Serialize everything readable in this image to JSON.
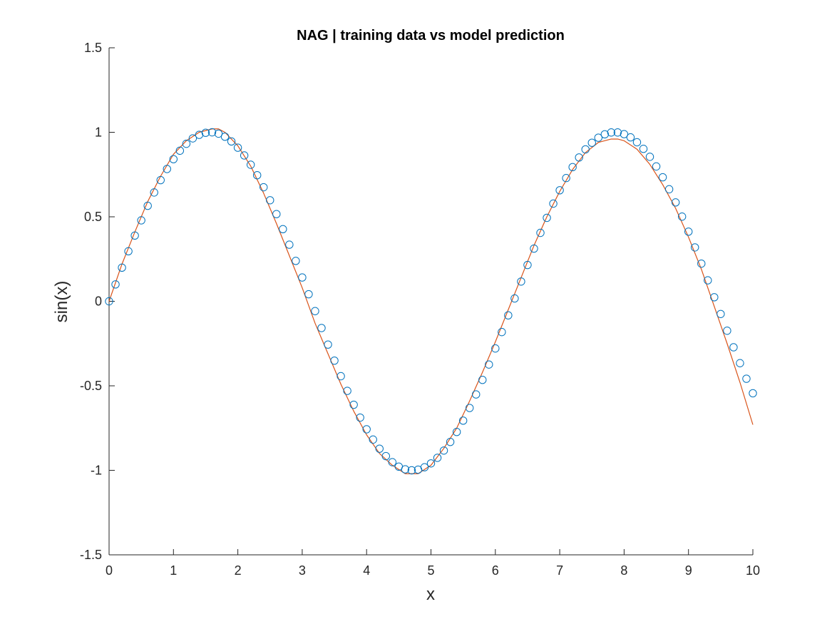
{
  "chart_data": {
    "type": "scatter",
    "title": "NAG | training data vs model prediction",
    "xlabel": "x",
    "ylabel": "sin(x)",
    "xlim": [
      0,
      10
    ],
    "ylim": [
      -1.5,
      1.5
    ],
    "x_ticks": [
      "0",
      "1",
      "2",
      "3",
      "4",
      "5",
      "6",
      "7",
      "8",
      "9",
      "10"
    ],
    "y_ticks": [
      "1.5",
      "1",
      "0.5",
      "0",
      "-0.5",
      "-1",
      "-1.5"
    ],
    "grid": false,
    "legend": "none",
    "series": [
      {
        "kind": "markers",
        "marker": "open-circle",
        "color": "#0072BD",
        "x": [
          0.0,
          0.1,
          0.2,
          0.3,
          0.4,
          0.5,
          0.6,
          0.7,
          0.8,
          0.9,
          1.0,
          1.1,
          1.2,
          1.3,
          1.4,
          1.5,
          1.6,
          1.7,
          1.8,
          1.9,
          2.0,
          2.1,
          2.2,
          2.3,
          2.4,
          2.5,
          2.6,
          2.7,
          2.8,
          2.9,
          3.0,
          3.1,
          3.2,
          3.3,
          3.4,
          3.5,
          3.6,
          3.7,
          3.8,
          3.9,
          4.0,
          4.1,
          4.2,
          4.3,
          4.4,
          4.5,
          4.6,
          4.7,
          4.8,
          4.9,
          5.0,
          5.1,
          5.2,
          5.3,
          5.4,
          5.5,
          5.6,
          5.7,
          5.8,
          5.9,
          6.0,
          6.1,
          6.2,
          6.3,
          6.4,
          6.5,
          6.6,
          6.7,
          6.8,
          6.9,
          7.0,
          7.1,
          7.2,
          7.3,
          7.4,
          7.5,
          7.6,
          7.7,
          7.8,
          7.9,
          8.0,
          8.1,
          8.2,
          8.3,
          8.4,
          8.5,
          8.6,
          8.7,
          8.8,
          8.9,
          9.0,
          9.1,
          9.2,
          9.3,
          9.4,
          9.5,
          9.6,
          9.7,
          9.8,
          9.9,
          10.0
        ],
        "y": [
          0.0,
          0.1,
          0.199,
          0.296,
          0.389,
          0.479,
          0.565,
          0.644,
          0.717,
          0.783,
          0.841,
          0.891,
          0.932,
          0.964,
          0.985,
          0.997,
          1.0,
          0.992,
          0.974,
          0.946,
          0.909,
          0.863,
          0.808,
          0.746,
          0.675,
          0.598,
          0.516,
          0.427,
          0.335,
          0.239,
          0.141,
          0.042,
          -0.058,
          -0.158,
          -0.256,
          -0.351,
          -0.443,
          -0.53,
          -0.612,
          -0.688,
          -0.757,
          -0.818,
          -0.872,
          -0.916,
          -0.952,
          -0.978,
          -0.994,
          -1.0,
          -0.996,
          -0.982,
          -0.959,
          -0.926,
          -0.883,
          -0.832,
          -0.773,
          -0.706,
          -0.631,
          -0.551,
          -0.465,
          -0.374,
          -0.279,
          -0.182,
          -0.083,
          0.017,
          0.117,
          0.215,
          0.312,
          0.405,
          0.494,
          0.578,
          0.657,
          0.729,
          0.794,
          0.851,
          0.899,
          0.938,
          0.968,
          0.988,
          0.999,
          0.999,
          0.989,
          0.97,
          0.941,
          0.902,
          0.855,
          0.798,
          0.734,
          0.663,
          0.585,
          0.501,
          0.412,
          0.319,
          0.223,
          0.124,
          0.024,
          -0.075,
          -0.174,
          -0.272,
          -0.366,
          -0.458,
          -0.544
        ]
      },
      {
        "kind": "line",
        "color": "#D95319",
        "x": [
          0.0,
          0.2,
          0.4,
          0.6,
          0.8,
          1.0,
          1.2,
          1.4,
          1.6,
          1.7,
          1.8,
          2.0,
          2.2,
          2.4,
          2.6,
          2.8,
          3.0,
          3.2,
          3.4,
          3.6,
          3.8,
          4.0,
          4.2,
          4.4,
          4.6,
          4.7,
          4.8,
          5.0,
          5.2,
          5.4,
          5.6,
          5.8,
          6.0,
          6.2,
          6.4,
          6.6,
          6.8,
          7.0,
          7.2,
          7.4,
          7.6,
          7.8,
          7.9,
          8.0,
          8.2,
          8.4,
          8.6,
          8.8,
          9.0,
          9.2,
          9.4,
          9.6,
          9.8,
          10.0
        ],
        "y": [
          0.0,
          0.22,
          0.41,
          0.59,
          0.74,
          0.87,
          0.95,
          1.0,
          1.02,
          1.02,
          1.0,
          0.92,
          0.8,
          0.64,
          0.46,
          0.27,
          0.08,
          -0.13,
          -0.31,
          -0.49,
          -0.65,
          -0.79,
          -0.9,
          -0.97,
          -1.02,
          -1.02,
          -1.02,
          -0.97,
          -0.87,
          -0.75,
          -0.59,
          -0.42,
          -0.24,
          -0.05,
          0.14,
          0.33,
          0.5,
          0.65,
          0.78,
          0.88,
          0.94,
          0.96,
          0.96,
          0.95,
          0.9,
          0.81,
          0.69,
          0.55,
          0.38,
          0.19,
          -0.03,
          -0.25,
          -0.48,
          -0.73
        ]
      }
    ]
  }
}
